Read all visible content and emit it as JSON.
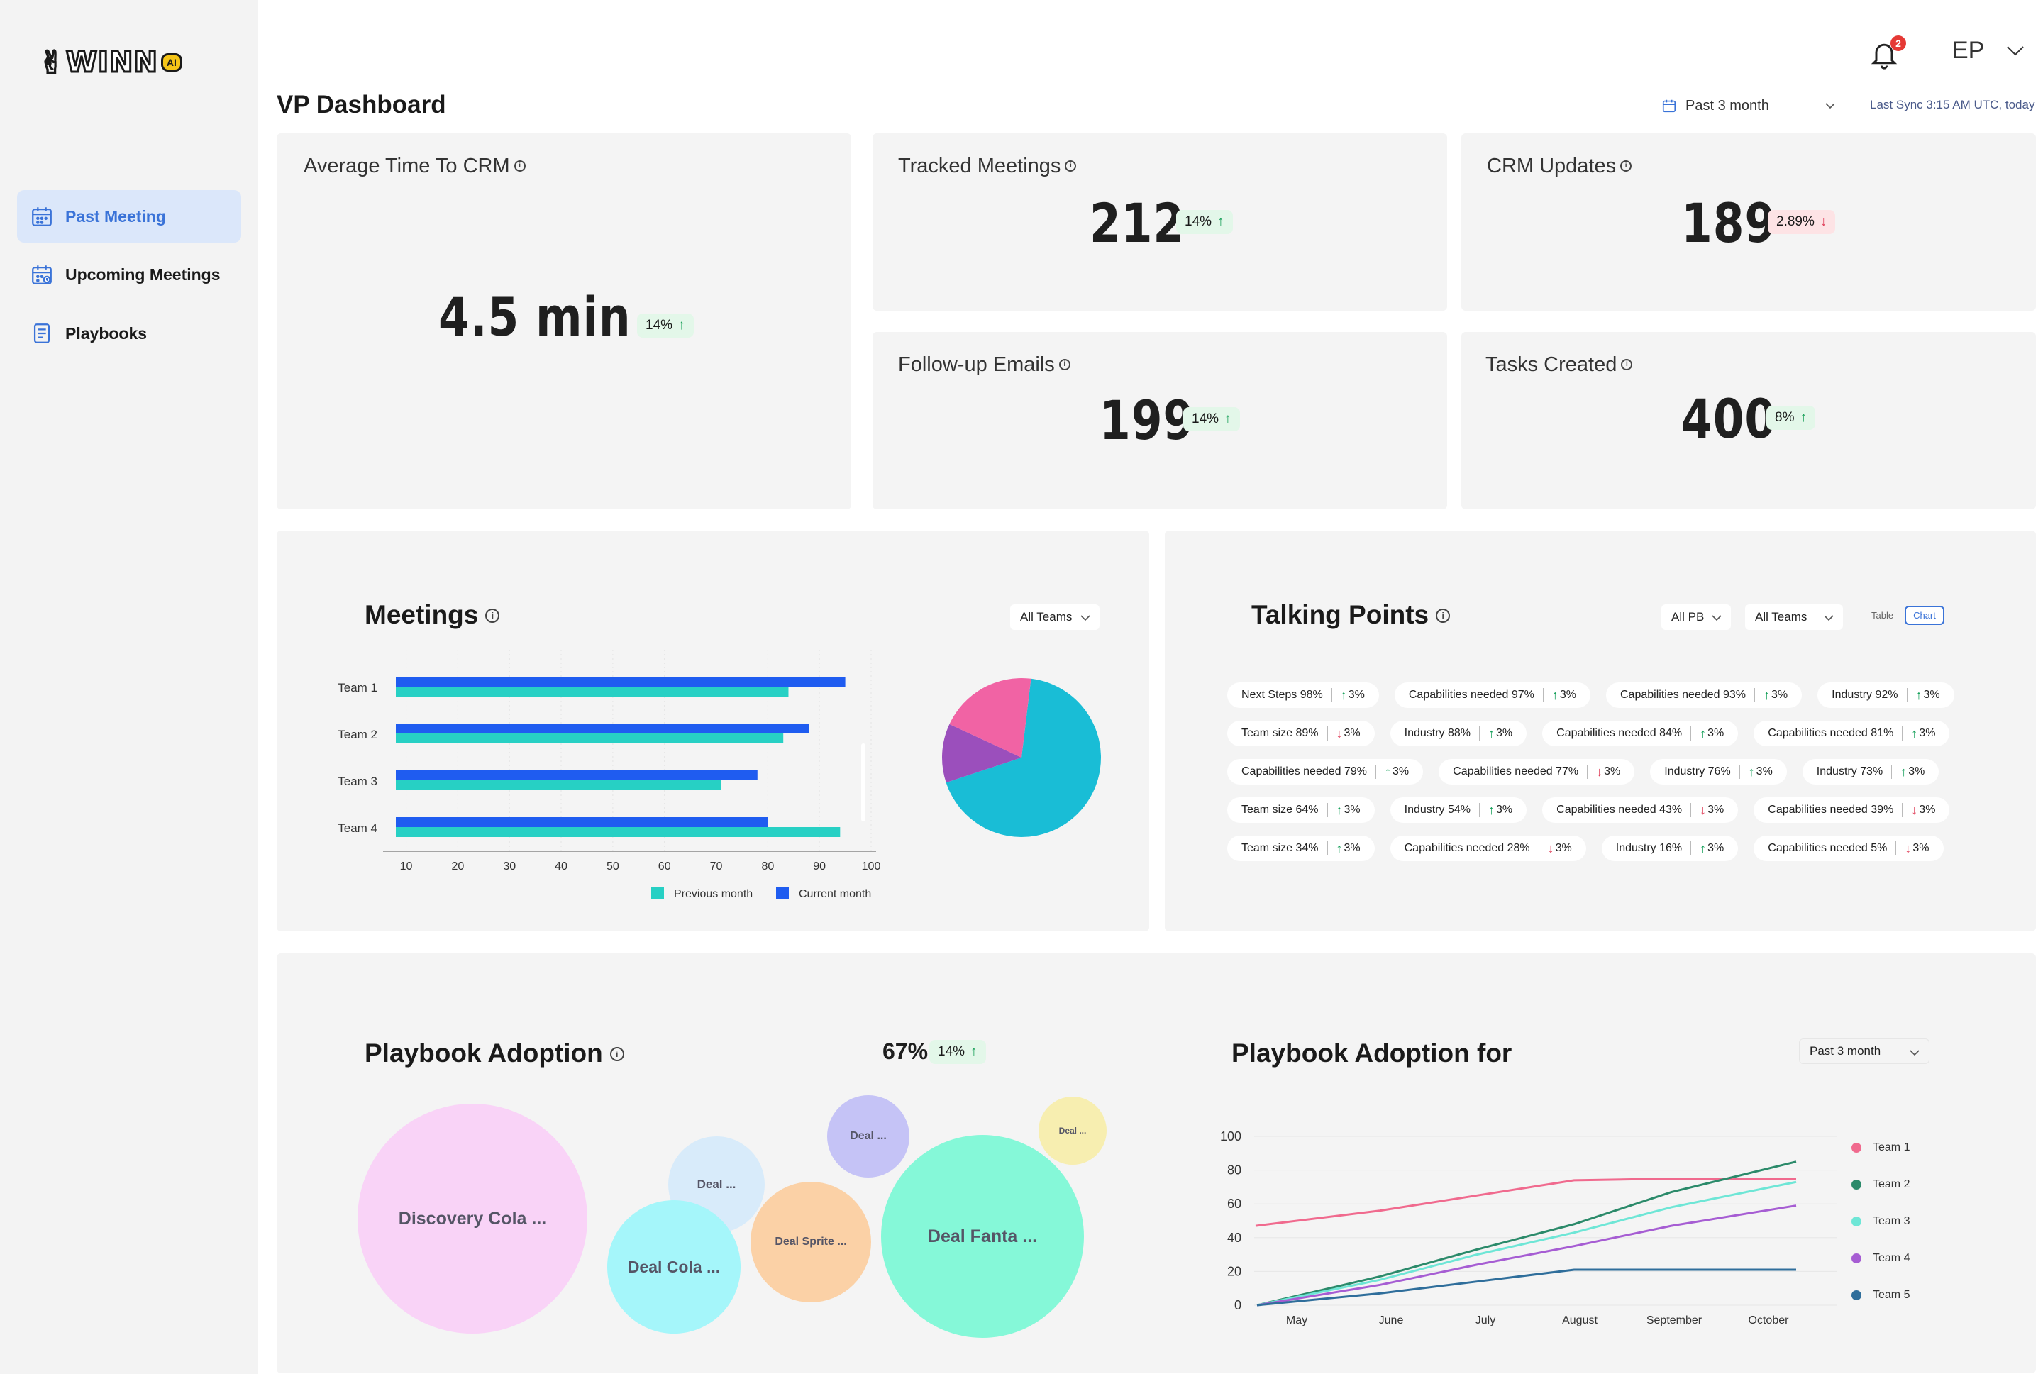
{
  "app": {
    "logo_text": "WINN",
    "logo_suffix": "AI"
  },
  "sidebar": {
    "items": [
      {
        "label": "Past Meeting",
        "icon": "calendar-icon",
        "active": true
      },
      {
        "label": "Upcoming Meetings",
        "icon": "calendar-clock-icon",
        "active": false
      },
      {
        "label": "Playbooks",
        "icon": "document-icon",
        "active": false
      }
    ]
  },
  "topbar": {
    "notifications": "2",
    "user_initials": "EP"
  },
  "header": {
    "title": "VP Dashboard",
    "range": "Past 3 month",
    "sync": "Last Sync 3:15 AM UTC, today"
  },
  "kpis": {
    "avg_crm": {
      "label": "Average Time To CRM",
      "value": "4.5 min",
      "delta": "14%",
      "dir": "up"
    },
    "tracked": {
      "label": "Tracked Meetings",
      "value": "212",
      "delta": "14%",
      "dir": "up"
    },
    "crm_updates": {
      "label": "CRM Updates",
      "value": "189",
      "delta": "2.89%",
      "dir": "down"
    },
    "followup": {
      "label": "Follow-up Emails",
      "value": "199",
      "delta": "14%",
      "dir": "up"
    },
    "tasks": {
      "label": "Tasks Created",
      "value": "400",
      "delta": "8%",
      "dir": "up"
    }
  },
  "meetings": {
    "title": "Meetings",
    "filter": "All Teams"
  },
  "talking_points": {
    "title": "Talking Points",
    "filter_pb": "All PB",
    "filter_teams": "All Teams",
    "view_table": "Table",
    "view_chart": "Chart",
    "rows": [
      [
        {
          "label": "Next Steps 98%",
          "dir": "up",
          "delta": "3%"
        },
        {
          "label": "Capabilities needed 97%",
          "dir": "up",
          "delta": "3%"
        },
        {
          "label": "Capabilities needed 93%",
          "dir": "up",
          "delta": "3%"
        },
        {
          "label": "Industry 92%",
          "dir": "up",
          "delta": "3%"
        }
      ],
      [
        {
          "label": "Team size 89%",
          "dir": "down",
          "delta": "3%"
        },
        {
          "label": "Industry 88%",
          "dir": "up",
          "delta": "3%"
        },
        {
          "label": "Capabilities needed 84%",
          "dir": "up",
          "delta": "3%"
        },
        {
          "label": "Capabilities needed 81%",
          "dir": "up",
          "delta": "3%"
        }
      ],
      [
        {
          "label": "Capabilities needed 79%",
          "dir": "up",
          "delta": "3%"
        },
        {
          "label": "Capabilities needed 77%",
          "dir": "down",
          "delta": "3%"
        },
        {
          "label": "Industry 76%",
          "dir": "up",
          "delta": "3%"
        },
        {
          "label": "Industry 73%",
          "dir": "up",
          "delta": "3%"
        }
      ],
      [
        {
          "label": "Team size 64%",
          "dir": "up",
          "delta": "3%"
        },
        {
          "label": "Industry 54%",
          "dir": "up",
          "delta": "3%"
        },
        {
          "label": "Capabilities needed 43%",
          "dir": "down",
          "delta": "3%"
        },
        {
          "label": "Capabilities needed 39%",
          "dir": "down",
          "delta": "3%"
        }
      ],
      [
        {
          "label": "Team size 34%",
          "dir": "up",
          "delta": "3%"
        },
        {
          "label": "Capabilities needed 28%",
          "dir": "down",
          "delta": "3%"
        },
        {
          "label": "Industry 16%",
          "dir": "up",
          "delta": "3%"
        },
        {
          "label": "Capabilities needed 5%",
          "dir": "down",
          "delta": "3%"
        }
      ]
    ]
  },
  "playbook": {
    "title": "Playbook Adoption",
    "percent": "67%",
    "delta": "14%",
    "bubbles": [
      {
        "label": "Discovery Cola ...",
        "color": "#f9d3f7"
      },
      {
        "label": "Deal ...",
        "color": "#d8ebfa"
      },
      {
        "label": "Deal Cola ...",
        "color": "#a5f6fa"
      },
      {
        "label": "Deal Sprite ...",
        "color": "#fbd1a6"
      },
      {
        "label": "Deal ...",
        "color": "#c5c3f6"
      },
      {
        "label": "Deal Fanta ...",
        "color": "#85f8d8"
      },
      {
        "label": "Deal ...",
        "color": "#f7eeb0"
      }
    ]
  },
  "playbook_for": {
    "title": "Playbook Adoption for",
    "range": "Past 3 month"
  },
  "chart_data": [
    {
      "type": "bar",
      "categories": [
        "Team 1",
        "Team 2",
        "Team 3",
        "Team 4"
      ],
      "series": [
        {
          "name": "Previous month",
          "color": "#27d0c4",
          "values": [
            84,
            83,
            71,
            94
          ]
        },
        {
          "name": "Current month",
          "color": "#1f5cf0",
          "values": [
            95,
            88,
            78,
            80
          ]
        }
      ],
      "xticks": [
        10,
        20,
        30,
        40,
        50,
        60,
        70,
        80,
        90,
        100
      ],
      "xlim": [
        8,
        100
      ],
      "orientation": "horizontal",
      "legend": "bottom"
    },
    {
      "type": "pie",
      "slices": [
        {
          "value": 68,
          "color": "#19bdd6"
        },
        {
          "value": 12,
          "color": "#9b4fbc"
        },
        {
          "value": 20,
          "color": "#f163a4"
        }
      ]
    },
    {
      "type": "line",
      "x": [
        "May",
        "June",
        "July",
        "August",
        "September",
        "October"
      ],
      "yticks": [
        0,
        20,
        40,
        60,
        80,
        100
      ],
      "ylim": [
        0,
        100
      ],
      "legend": "right",
      "series": [
        {
          "name": "Team 1",
          "color": "#f06a8e",
          "values": [
            47,
            56,
            65,
            74,
            75,
            75
          ]
        },
        {
          "name": "Team 2",
          "color": "#2b8a6a",
          "values": [
            0,
            17,
            33,
            48,
            67,
            85
          ]
        },
        {
          "name": "Team 3",
          "color": "#6ee6d6",
          "values": [
            0,
            15,
            30,
            43,
            58,
            73
          ]
        },
        {
          "name": "Team 4",
          "color": "#a65dd3",
          "values": [
            0,
            12,
            24,
            35,
            47,
            59
          ]
        },
        {
          "name": "Team 5",
          "color": "#2f6e9b",
          "values": [
            0,
            7,
            14,
            21,
            21,
            21
          ]
        }
      ]
    }
  ]
}
